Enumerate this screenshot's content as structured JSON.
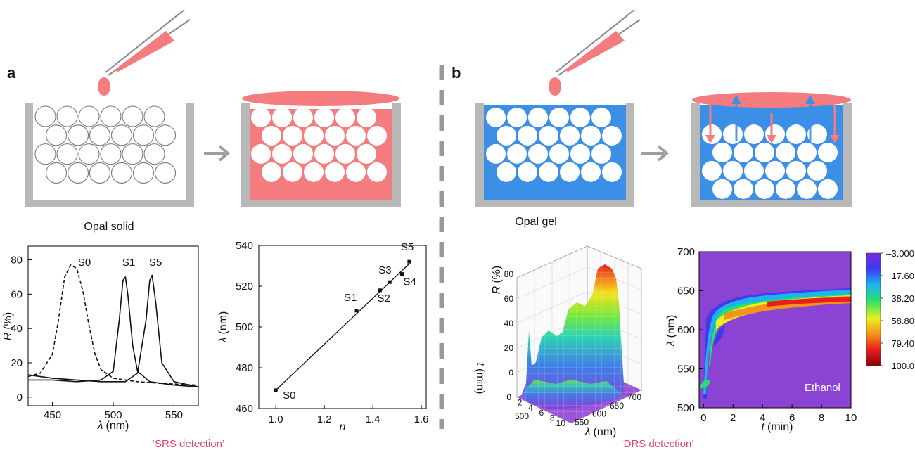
{
  "panels": [
    {
      "letter": "a",
      "caption": "Opal solid",
      "footer": "‘SRS detection’"
    },
    {
      "letter": "b",
      "caption": "Opal gel",
      "footer": "‘DRS detection’"
    }
  ],
  "colors": {
    "pink": "#f47b7e",
    "blue": "#3b8fe6",
    "gray": "#b8b8b8",
    "footer": "#e83e6e"
  },
  "chart_data": [
    {
      "type": "line",
      "xlabel_var": "λ",
      "xlabel_unit": "(nm)",
      "ylabel_var": "R",
      "ylabel_unit": "(%)",
      "xlim": [
        430,
        570
      ],
      "ylim": [
        -5,
        88
      ],
      "xticks": [
        "450",
        "500",
        "550"
      ],
      "yticks": [
        "0",
        "20",
        "40",
        "60",
        "80"
      ],
      "series": [
        {
          "name": "S0",
          "style": "dashed",
          "x": [
            430,
            440,
            450,
            455,
            460,
            465,
            470,
            475,
            480,
            485,
            490,
            500,
            510,
            520,
            540,
            570
          ],
          "y": [
            12,
            14,
            25,
            45,
            70,
            77,
            75,
            62,
            42,
            25,
            16,
            11,
            10,
            9,
            8,
            7
          ]
        },
        {
          "name": "S1",
          "style": "solid",
          "x": [
            430,
            450,
            470,
            490,
            500,
            505,
            508,
            510,
            512,
            516,
            520,
            530,
            550,
            570
          ],
          "y": [
            10,
            10,
            9,
            10,
            15,
            45,
            68,
            70,
            60,
            30,
            15,
            9,
            7,
            6
          ]
        },
        {
          "name": "S5",
          "style": "solid",
          "x": [
            430,
            450,
            470,
            490,
            510,
            520,
            527,
            530,
            532,
            535,
            540,
            550,
            570
          ],
          "y": [
            13,
            11,
            10,
            9,
            9,
            14,
            45,
            68,
            71,
            55,
            20,
            9,
            6
          ]
        }
      ]
    },
    {
      "type": "scatter",
      "xlabel_var": "n",
      "ylabel_var": "λ",
      "ylabel_unit": "(nm)",
      "xlim": [
        0.93,
        1.62
      ],
      "ylim": [
        460,
        540
      ],
      "xticks": [
        "1.0",
        "1.2",
        "1.4",
        "1.6"
      ],
      "yticks": [
        "460",
        "480",
        "500",
        "520",
        "540"
      ],
      "points": [
        {
          "label": "S0",
          "x": 1.0,
          "y": 469
        },
        {
          "label": "S1",
          "x": 1.333,
          "y": 508
        },
        {
          "label": "S2",
          "x": 1.43,
          "y": 518
        },
        {
          "label": "S3",
          "x": 1.47,
          "y": 522
        },
        {
          "label": "S4",
          "x": 1.52,
          "y": 526
        },
        {
          "label": "S5",
          "x": 1.55,
          "y": 532
        }
      ],
      "fit": {
        "x": [
          1.0,
          1.55
        ],
        "y": [
          469,
          531
        ]
      }
    },
    {
      "type": "surface3d",
      "zlabel_var": "R",
      "zlabel_unit": "(%)",
      "tlabel_var": "t",
      "tlabel_unit": "(min)",
      "xlabel_var": "λ",
      "xlabel_unit": "(nm)",
      "zticks": [
        "0",
        "20",
        "40",
        "60",
        "80"
      ],
      "tticks": [
        "0",
        "2",
        "4",
        "6",
        "8",
        "10"
      ],
      "xticks": [
        "500",
        "550",
        "600",
        "650",
        "700"
      ]
    },
    {
      "type": "heatmap",
      "xlabel_var": "t",
      "xlabel_unit": "(min)",
      "ylabel_var": "λ",
      "ylabel_unit": "(nm)",
      "xlim": [
        -0.3,
        10
      ],
      "ylim": [
        500,
        700
      ],
      "xticks": [
        "0",
        "2",
        "4",
        "6",
        "8",
        "10"
      ],
      "yticks": [
        "500",
        "550",
        "600",
        "650",
        "700"
      ],
      "annotation": "Ethanol",
      "colorbar": [
        "–3.000",
        "17.60",
        "38.20",
        "58.80",
        "79.40",
        "100.0"
      ]
    }
  ]
}
